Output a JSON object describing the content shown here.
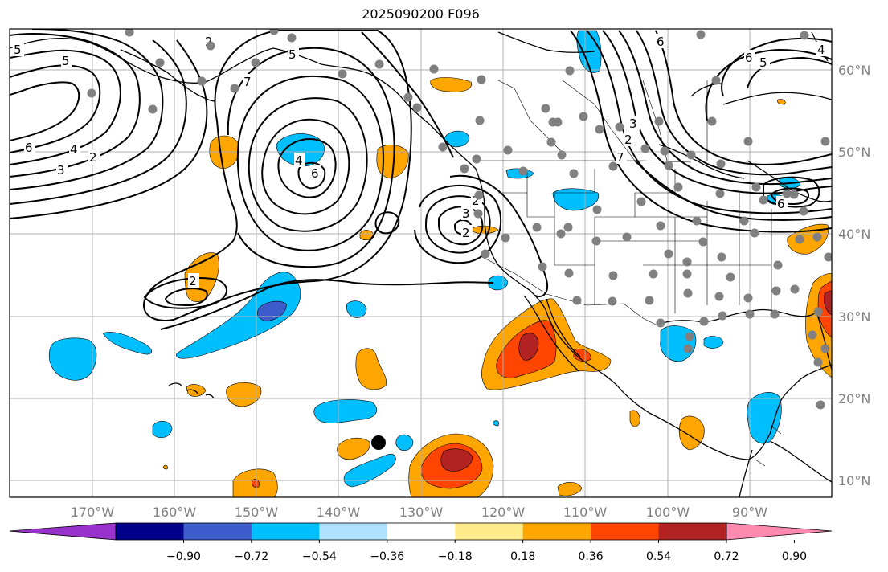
{
  "title": "2025090200 F096",
  "lon_labels": [
    "170°W",
    "160°W",
    "150°W",
    "140°W",
    "130°W",
    "120°W",
    "110°W",
    "100°W",
    "90°W"
  ],
  "lat_labels": [
    "60°N",
    "50°N",
    "40°N",
    "30°N",
    "20°N",
    "10°N"
  ],
  "colorbar": {
    "colors": [
      "#9932cc",
      "#00008b",
      "#3c5ccc",
      "#00bfff",
      "#aee2ff",
      "#ffffff",
      "#ffeb8a",
      "#ffa500",
      "#ff4500",
      "#b22222",
      "#ff8ab0"
    ],
    "tick_labels": [
      "−0.90",
      "−0.72",
      "−0.54",
      "−0.36",
      "−0.18",
      "0.18",
      "0.36",
      "0.54",
      "0.72",
      "0.90"
    ]
  },
  "contour_labels": [
    "5",
    "6",
    "4",
    "3",
    "2",
    "5",
    "2",
    "5",
    "4",
    "6",
    "2",
    "7",
    "3",
    "2",
    "2",
    "6",
    "7",
    "3",
    "2",
    "6",
    "5",
    "6",
    "4"
  ],
  "colors": {
    "neg_light": "#00bfff",
    "neg_mid": "#3c5ccc",
    "pos_light": "#ffa500",
    "pos_mid": "#ff4500",
    "pos_dark": "#b22222",
    "station": "#808080",
    "grid": "#b0b0b0"
  },
  "chart_data": {
    "type": "contour map",
    "title": "2025090200 F096",
    "lon_range": [
      -180,
      -80
    ],
    "lat_range": [
      8,
      65
    ],
    "filled_levels": [
      -0.9,
      -0.72,
      -0.54,
      -0.36,
      -0.18,
      0.18,
      0.36,
      0.54,
      0.72,
      0.9
    ],
    "line_contour_values": [
      2,
      3,
      4,
      5,
      6,
      7
    ],
    "marked_point": {
      "lon": -135,
      "lat": 15
    }
  }
}
